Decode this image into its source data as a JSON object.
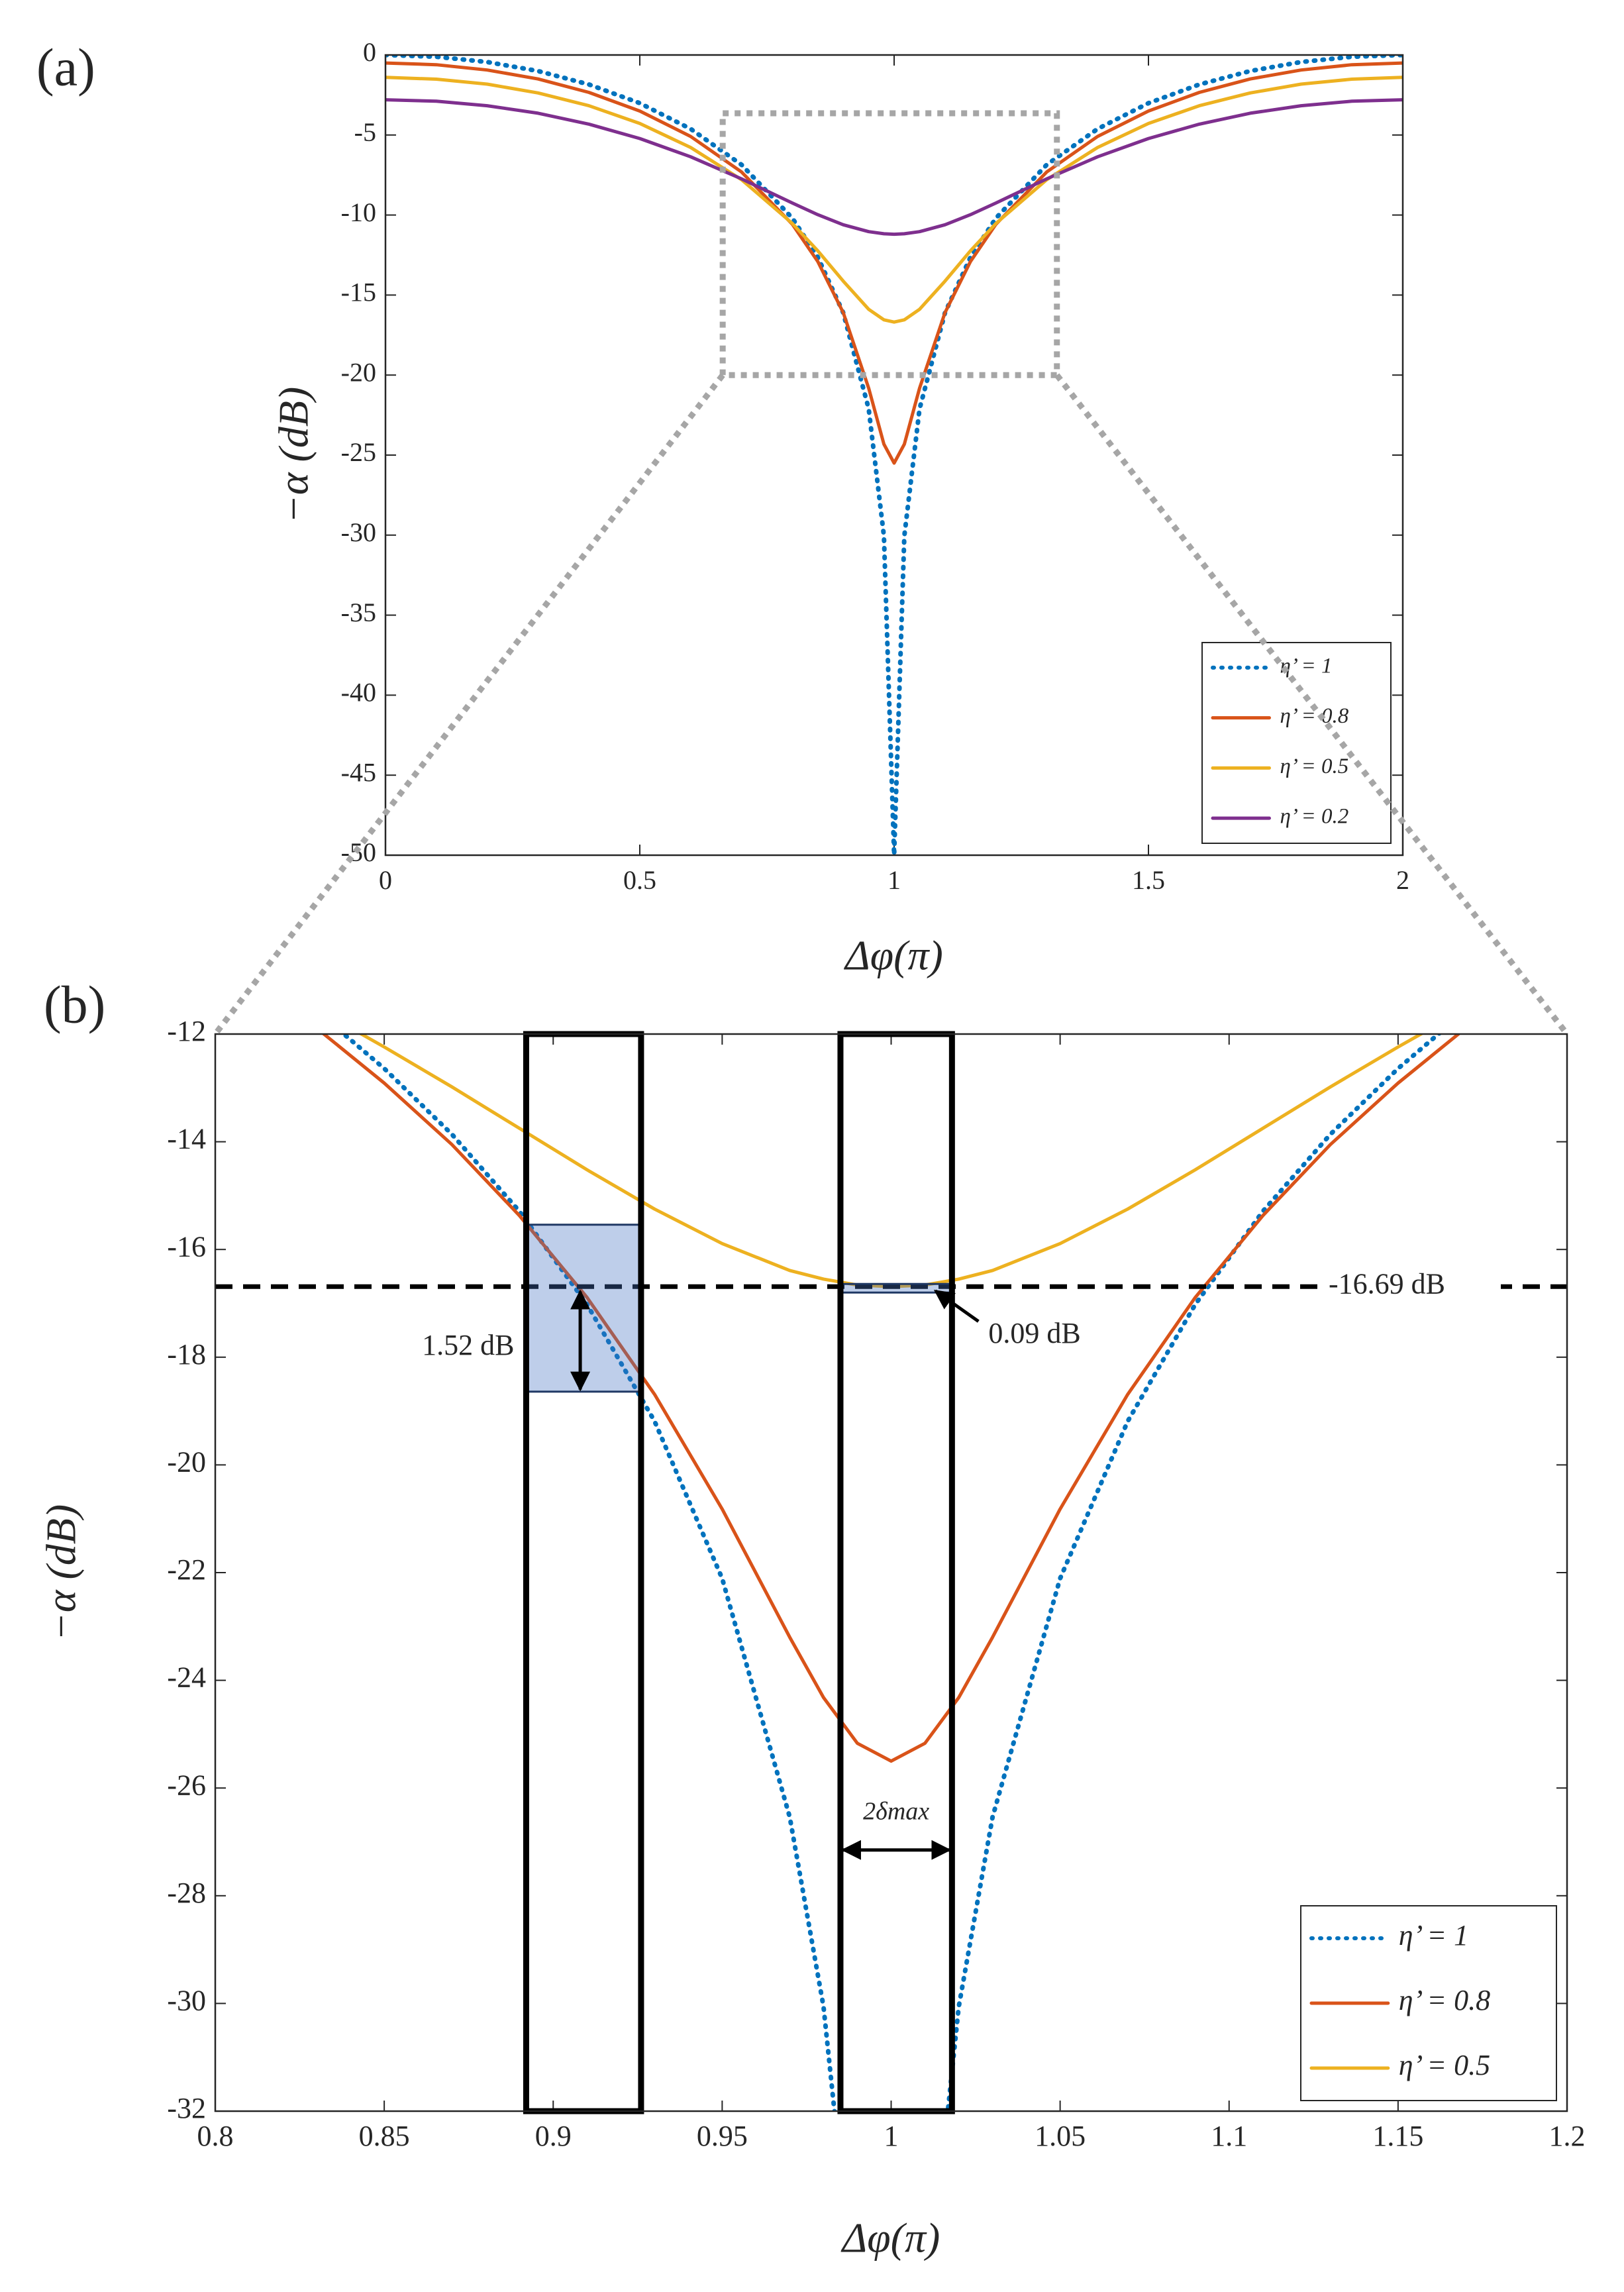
{
  "chart_data": [
    {
      "type": "line",
      "panel_label": "(a)",
      "x_label": "Δφ(π)",
      "y_label": "−α (dB)",
      "x": [
        0,
        0.1,
        0.2,
        0.3,
        0.4,
        0.5,
        0.6,
        0.7,
        0.8,
        0.85,
        0.9,
        0.95,
        0.98,
        1,
        1.02,
        1.05,
        1.1,
        1.15,
        1.2,
        1.3,
        1.4,
        1.5,
        1.6,
        1.7,
        1.8,
        1.9,
        2
      ],
      "series": [
        {
          "name": "η’ = 1",
          "color": "#0072bd",
          "dash": "dotted",
          "values": [
            0,
            -0.11,
            -0.44,
            -1,
            -1.84,
            -3.01,
            -4.62,
            -6.86,
            -10.2,
            -12.64,
            -16.11,
            -22.11,
            -30.06,
            -50,
            -30.06,
            -22.11,
            -16.11,
            -12.64,
            -10.2,
            -6.86,
            -4.62,
            -3.01,
            -1.84,
            -1,
            -0.44,
            -0.11,
            0
          ]
        },
        {
          "name": "η’ = 0.8",
          "color": "#d95319",
          "dash": "solid",
          "values": [
            -0.5,
            -0.61,
            -0.94,
            -1.5,
            -2.34,
            -3.5,
            -5.09,
            -7.31,
            -10.58,
            -12.91,
            -16.1,
            -20.82,
            -24.32,
            -25.5,
            -24.32,
            -20.82,
            -16.1,
            -12.91,
            -10.58,
            -7.31,
            -5.09,
            -3.5,
            -2.34,
            -1.5,
            -0.94,
            -0.61,
            -0.5
          ]
        },
        {
          "name": "η’ = 0.5",
          "color": "#edb120",
          "dash": "solid",
          "values": [
            -1.4,
            -1.51,
            -1.82,
            -2.37,
            -3.17,
            -4.28,
            -5.78,
            -7.79,
            -10.53,
            -12.24,
            -14.13,
            -15.89,
            -16.55,
            -16.69,
            -16.55,
            -15.89,
            -14.13,
            -12.24,
            -10.53,
            -7.79,
            -5.78,
            -4.28,
            -3.17,
            -2.37,
            -1.82,
            -1.51,
            -1.4
          ]
        },
        {
          "name": "η’ = 0.2",
          "color": "#7e2f8e",
          "dash": "solid",
          "values": [
            -2.8,
            -2.89,
            -3.17,
            -3.64,
            -4.32,
            -5.22,
            -6.36,
            -7.74,
            -9.25,
            -9.98,
            -10.61,
            -11.04,
            -11.17,
            -11.2,
            -11.17,
            -11.04,
            -10.61,
            -9.98,
            -9.25,
            -7.74,
            -6.36,
            -5.22,
            -4.32,
            -3.64,
            -3.17,
            -2.89,
            -2.8
          ]
        }
      ],
      "xlim": [
        0,
        2
      ],
      "xticks": [
        0,
        0.5,
        1,
        1.5,
        2
      ],
      "ylim": [
        -50,
        0
      ],
      "yticks": [
        0,
        -5,
        -10,
        -15,
        -20,
        -25,
        -30,
        -35,
        -40,
        -45,
        -50
      ],
      "legend": "lower right",
      "zoom_box": {
        "x": [
          0.663,
          1.32
        ],
        "y": [
          -3.64,
          -20
        ]
      }
    },
    {
      "type": "line",
      "panel_label": "(b)",
      "x_label": "Δφ(π)",
      "y_label": "−α (dB)",
      "x": [
        0.8,
        0.83,
        0.85,
        0.87,
        0.89,
        0.91,
        0.93,
        0.95,
        0.97,
        0.98,
        0.99,
        1,
        1.01,
        1.02,
        1.03,
        1.05,
        1.07,
        1.09,
        1.11,
        1.13,
        1.15,
        1.17,
        1.2
      ],
      "series": [
        {
          "name": "η’ = 1",
          "color": "#0072bd",
          "dash": "dotted",
          "values": [
            -10.2,
            -11.57,
            -12.64,
            -13.86,
            -15.29,
            -17.02,
            -19.19,
            -22.11,
            -26.54,
            -30.06,
            -36.07,
            null,
            -36.07,
            -30.06,
            -26.54,
            -22.11,
            -19.19,
            -17.02,
            -15.29,
            -13.86,
            -12.64,
            -11.57,
            -10.2
          ]
        },
        {
          "name": "η’ = 0.8",
          "color": "#d95319",
          "dash": "solid",
          "values": [
            -10.58,
            -11.89,
            -12.91,
            -14.05,
            -15.37,
            -16.89,
            -18.69,
            -20.82,
            -23.2,
            -24.32,
            -25.17,
            -25.5,
            -25.17,
            -24.32,
            -23.2,
            -20.82,
            -18.69,
            -16.89,
            -15.37,
            -14.05,
            -12.91,
            -11.89,
            -10.58
          ]
        },
        {
          "name": "η’ = 0.5",
          "color": "#edb120",
          "dash": "solid",
          "values": [
            -10.53,
            -11.53,
            -12.24,
            -12.98,
            -13.75,
            -14.52,
            -15.25,
            -15.89,
            -16.39,
            -16.55,
            -16.66,
            -16.69,
            -16.66,
            -16.55,
            -16.39,
            -15.89,
            -15.25,
            -14.52,
            -13.75,
            -12.98,
            -12.24,
            -11.53,
            -10.53
          ]
        }
      ],
      "xlim": [
        0.8,
        1.2
      ],
      "xticks": [
        0.8,
        0.85,
        0.9,
        0.95,
        1,
        1.05,
        1.1,
        1.15,
        1.2
      ],
      "ylim": [
        -32,
        -12
      ],
      "yticks": [
        -12,
        -14,
        -16,
        -18,
        -20,
        -22,
        -24,
        -26,
        -28,
        -30,
        -32
      ],
      "legend": "lower right",
      "hline": {
        "value": -16.69,
        "label": "-16.69 dB"
      },
      "windows": [
        {
          "x": [
            0.892,
            0.926
          ]
        },
        {
          "x": [
            0.985,
            1.018
          ]
        }
      ],
      "bands": [
        {
          "x": [
            0.892,
            0.926
          ],
          "y": [
            -15.54,
            -18.64
          ],
          "label": "1.52 dB",
          "arrow_x": 0.908,
          "arrow_y": [
            -16.78,
            -18.6
          ]
        },
        {
          "x": [
            0.985,
            1.018
          ],
          "y": [
            -16.64,
            -16.8
          ],
          "label": "0.09 dB"
        }
      ],
      "span_arrow": {
        "x": [
          0.985,
          1.018
        ],
        "y": -27.15,
        "label": "2δmax"
      }
    }
  ]
}
